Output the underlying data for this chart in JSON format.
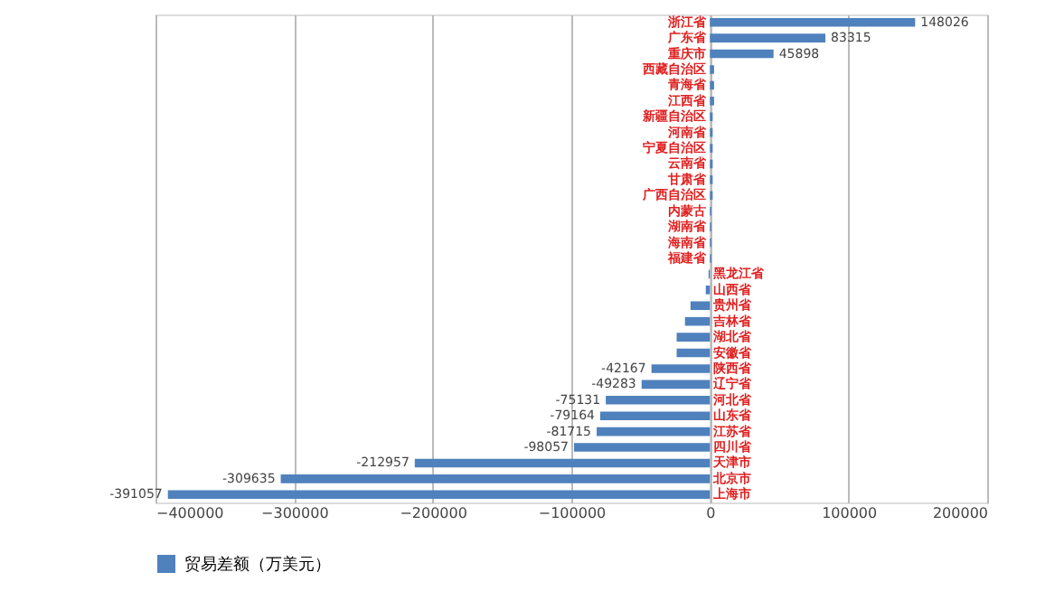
{
  "chart_data": {
    "type": "bar",
    "orientation": "horizontal",
    "categories": [
      "浙江省",
      "广东省",
      "重庆市",
      "西藏自治区",
      "青海省",
      "江西省",
      "新疆自治区",
      "河南省",
      "宁夏自治区",
      "云南省",
      "甘肃省",
      "广西自治区",
      "内蒙古",
      "湖南省",
      "海南省",
      "福建省",
      "黑龙江省",
      "山西省",
      "贵州省",
      "吉林省",
      "湖北省",
      "安徽省",
      "陕西省",
      "辽宁省",
      "河北省",
      "山东省",
      "江苏省",
      "四川省",
      "天津市",
      "北京市",
      "上海市"
    ],
    "series": [
      {
        "name": "贸易差额（万美元）",
        "color": "#4f81bd",
        "values": [
          148026,
          83315,
          45898,
          3000,
          3000,
          3000,
          2000,
          2000,
          2000,
          2000,
          2000,
          2000,
          1000,
          1000,
          1000,
          1000,
          -1000,
          -3000,
          -14000,
          -18000,
          -24000,
          -24000,
          -42167,
          -49283,
          -75131,
          -79164,
          -81715,
          -98057,
          -212957,
          -309635,
          -391057
        ],
        "value_labels": [
          "148026",
          "83315",
          "45898",
          null,
          null,
          null,
          null,
          null,
          null,
          null,
          null,
          null,
          null,
          null,
          null,
          null,
          null,
          null,
          null,
          null,
          null,
          null,
          "-42167",
          "-49283",
          "-75131",
          "-79164",
          "-81715",
          "-98057",
          "-212957",
          "-309635",
          "-391057"
        ]
      }
    ],
    "xlim": [
      -400000,
      200000
    ],
    "xticks": [
      -400000,
      -300000,
      -200000,
      -100000,
      0,
      100000,
      200000
    ],
    "grid": "x",
    "legend": "bottom"
  }
}
